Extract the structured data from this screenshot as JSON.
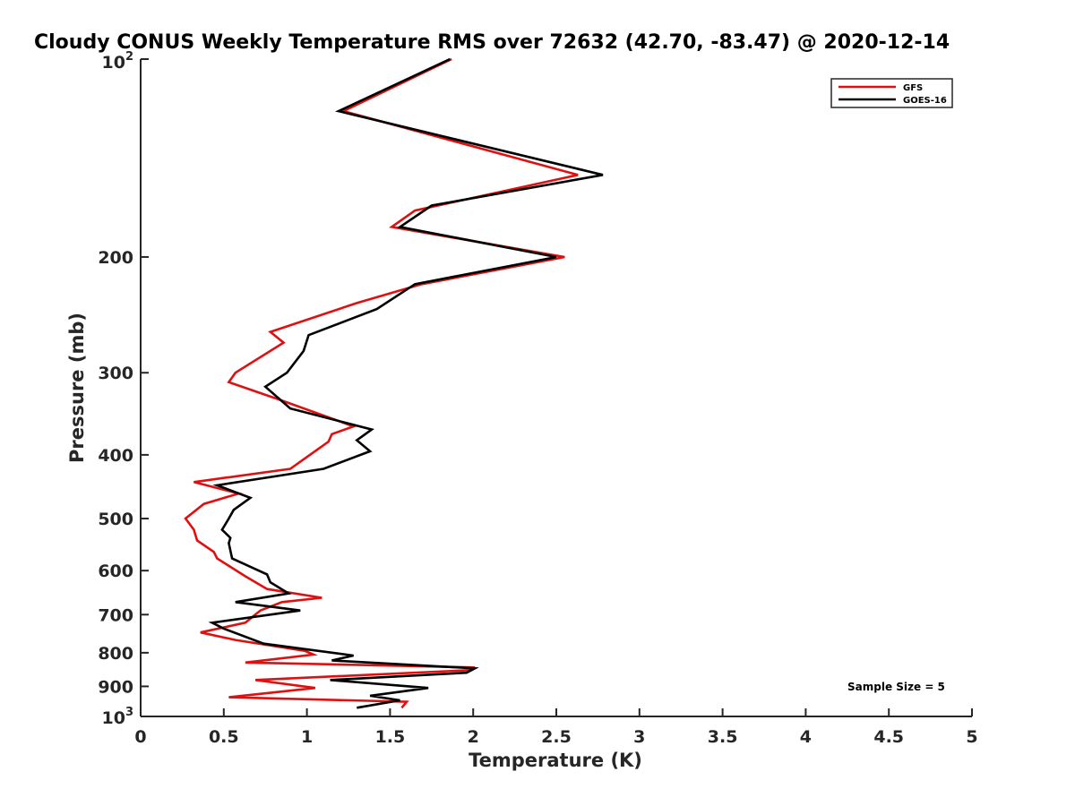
{
  "chart_data": {
    "type": "line",
    "title": "Cloudy CONUS Weekly Temperature RMS over 72632 (42.70, -83.47) @ 2020-12-14",
    "xlabel": "Temperature (K)",
    "ylabel": "Pressure (mb)",
    "xlim": [
      0,
      5
    ],
    "ylim": [
      1000,
      100
    ],
    "y_scale": "log",
    "y_reversed": true,
    "grid": false,
    "legend_position": "top-right",
    "x_ticks": [
      0,
      0.5,
      1,
      1.5,
      2,
      2.5,
      3,
      3.5,
      4,
      4.5,
      5
    ],
    "x_tick_labels": [
      "0",
      "0.5",
      "1",
      "1.5",
      "2",
      "2.5",
      "3",
      "3.5",
      "4",
      "4.5",
      "5"
    ],
    "y_ticks": [
      200,
      300,
      400,
      500,
      600,
      700,
      800,
      900
    ],
    "y_tick_labels": [
      "200",
      "300",
      "400",
      "500",
      "600",
      "700",
      "800",
      "900"
    ],
    "y_tick_bottom": {
      "base": "10",
      "exp": "3",
      "value": 1000
    },
    "y_tick_top": {
      "base": "10",
      "exp": "2",
      "value": 100
    },
    "annotation": "Sample Size = 5",
    "series": [
      {
        "name": "GFS",
        "color": "#e01010",
        "points": [
          [
            1.87,
            100
          ],
          [
            1.22,
            120
          ],
          [
            2.63,
            150
          ],
          [
            1.65,
            170
          ],
          [
            1.51,
            180
          ],
          [
            2.55,
            200
          ],
          [
            1.69,
            220
          ],
          [
            1.3,
            235
          ],
          [
            0.78,
            260
          ],
          [
            0.86,
            270
          ],
          [
            0.57,
            300
          ],
          [
            0.53,
            310
          ],
          [
            0.84,
            330
          ],
          [
            1.28,
            362
          ],
          [
            1.15,
            372
          ],
          [
            1.13,
            382
          ],
          [
            0.9,
            420
          ],
          [
            0.32,
            440
          ],
          [
            0.59,
            458
          ],
          [
            0.38,
            475
          ],
          [
            0.27,
            500
          ],
          [
            0.32,
            520
          ],
          [
            0.34,
            540
          ],
          [
            0.44,
            562
          ],
          [
            0.46,
            575
          ],
          [
            0.63,
            612
          ],
          [
            0.76,
            640
          ],
          [
            1.09,
            660
          ],
          [
            0.85,
            670
          ],
          [
            0.72,
            690
          ],
          [
            0.63,
            720
          ],
          [
            0.36,
            745
          ],
          [
            0.57,
            765
          ],
          [
            0.99,
            795
          ],
          [
            1.04,
            805
          ],
          [
            0.63,
            828
          ],
          [
            2.0,
            842
          ],
          [
            1.99,
            850
          ],
          [
            0.69,
            880
          ],
          [
            1.05,
            905
          ],
          [
            0.53,
            935
          ],
          [
            1.6,
            950
          ],
          [
            1.57,
            970
          ]
        ]
      },
      {
        "name": "GOES-16",
        "color": "#000000",
        "points": [
          [
            1.86,
            100
          ],
          [
            1.19,
            120
          ],
          [
            2.78,
            150
          ],
          [
            1.75,
            167
          ],
          [
            1.56,
            180
          ],
          [
            2.5,
            200
          ],
          [
            1.65,
            220
          ],
          [
            1.42,
            240
          ],
          [
            1.01,
            263
          ],
          [
            0.98,
            278
          ],
          [
            0.88,
            300
          ],
          [
            0.75,
            315
          ],
          [
            0.9,
            340
          ],
          [
            1.39,
            366
          ],
          [
            1.3,
            380
          ],
          [
            1.38,
            395
          ],
          [
            1.1,
            420
          ],
          [
            0.46,
            445
          ],
          [
            0.66,
            465
          ],
          [
            0.56,
            485
          ],
          [
            0.53,
            500
          ],
          [
            0.49,
            520
          ],
          [
            0.54,
            535
          ],
          [
            0.53,
            545
          ],
          [
            0.55,
            575
          ],
          [
            0.76,
            608
          ],
          [
            0.78,
            625
          ],
          [
            0.89,
            650
          ],
          [
            0.57,
            670
          ],
          [
            0.96,
            690
          ],
          [
            0.43,
            720
          ],
          [
            0.5,
            735
          ],
          [
            0.74,
            775
          ],
          [
            1.28,
            808
          ],
          [
            1.15,
            822
          ],
          [
            2.01,
            845
          ],
          [
            1.96,
            858
          ],
          [
            1.14,
            880
          ],
          [
            1.73,
            905
          ],
          [
            1.38,
            930
          ],
          [
            1.56,
            945
          ],
          [
            1.3,
            970
          ]
        ]
      }
    ]
  }
}
